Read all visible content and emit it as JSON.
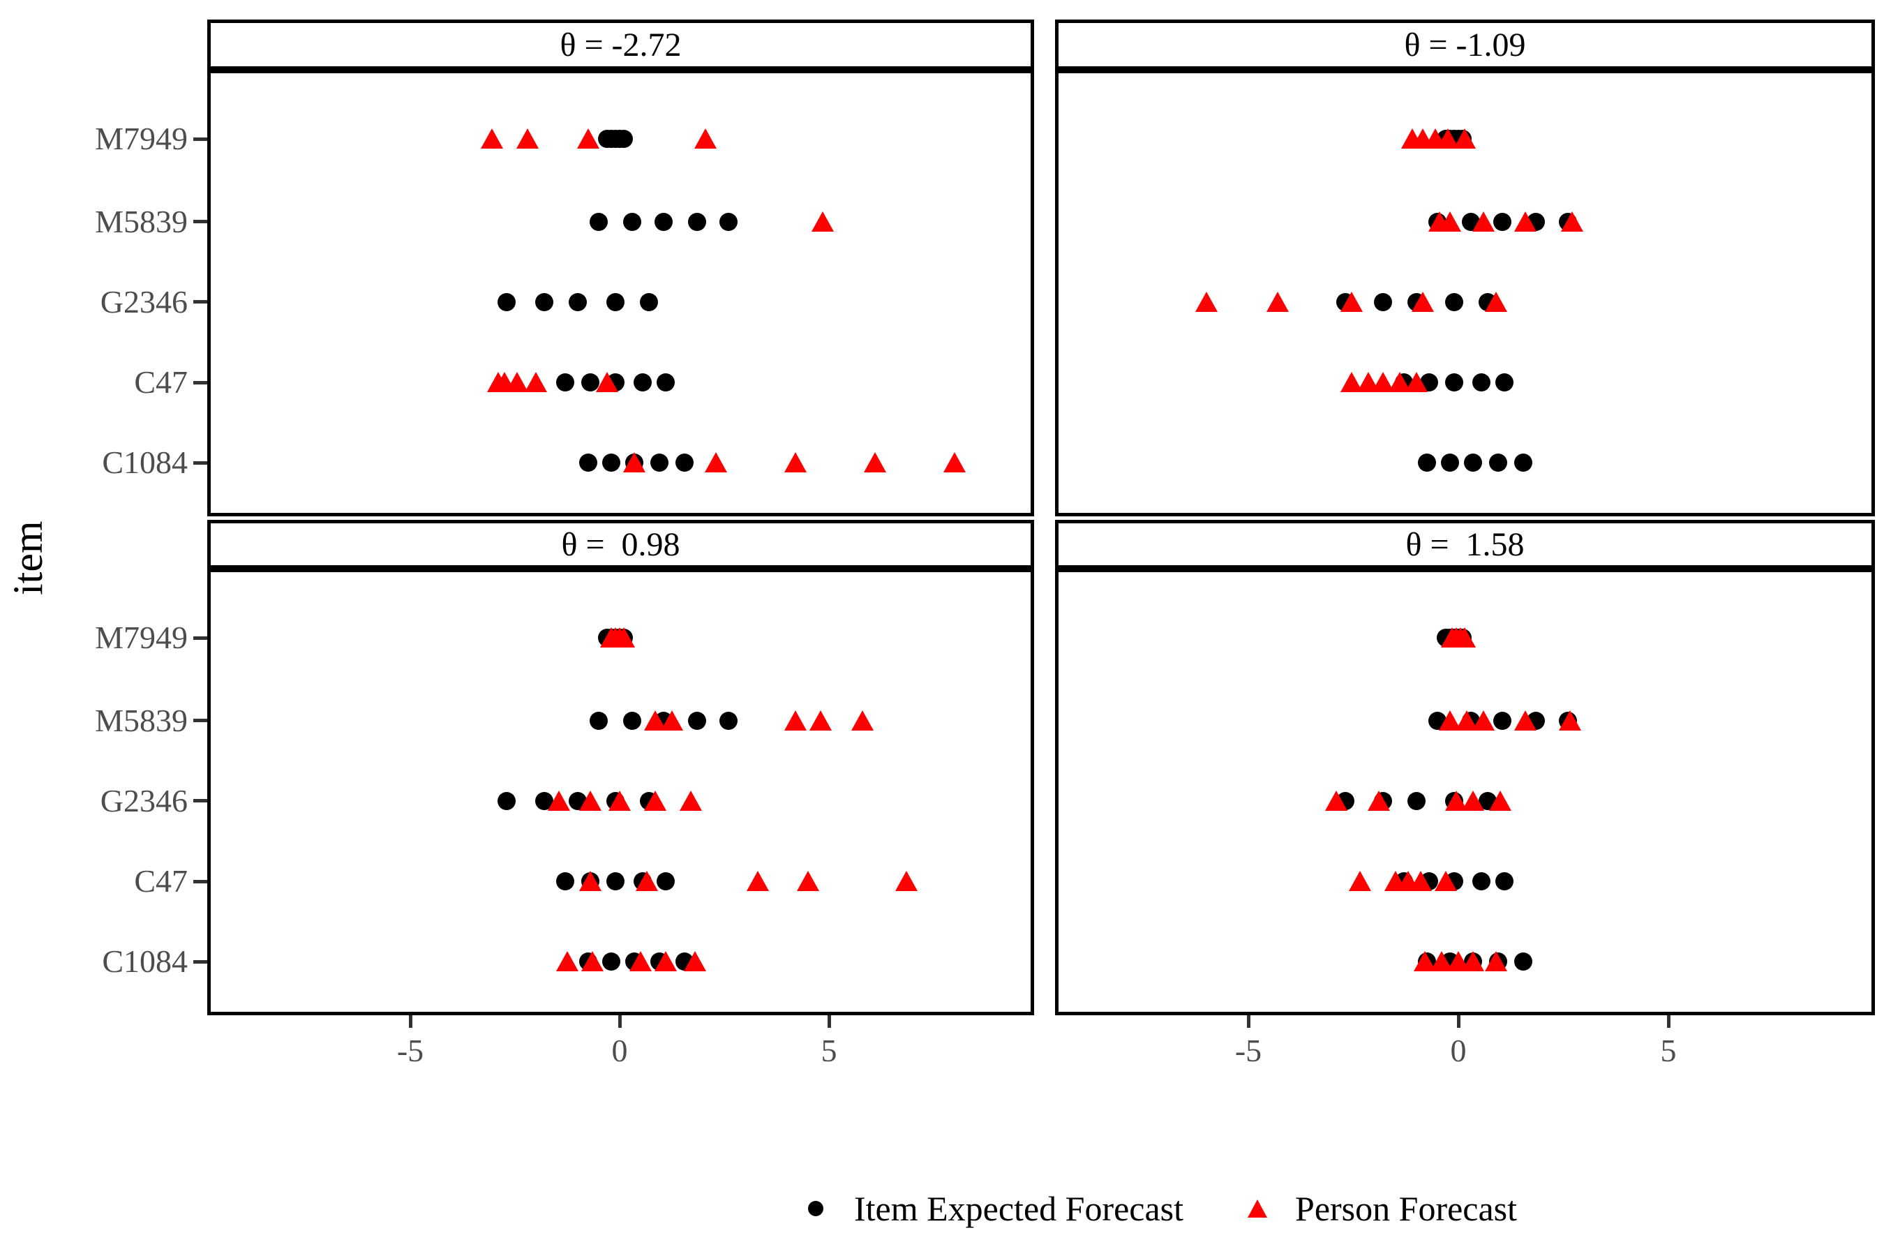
{
  "figure": {
    "y_axis_title": "item",
    "items": [
      "M7949",
      "M5839",
      "G2346",
      "C47",
      "C1084"
    ],
    "x_tick_labels": [
      "-5",
      "0",
      "5"
    ],
    "colors": {
      "background": "#FFFFFF",
      "item_expected_point": "#000000",
      "person_forecast_point": "#FF0000",
      "axis_text": "#4D4D4D",
      "panel_border": "#000000"
    },
    "legend": [
      {
        "marker": "circle",
        "label": "Item Expected Forecast"
      },
      {
        "marker": "triangle",
        "label": "Person Forecast"
      }
    ]
  },
  "chart_data": [
    {
      "type": "scatter",
      "facet_label": "θ = -2.72",
      "theta": -2.72,
      "x_ticks": [
        -5,
        0,
        5
      ],
      "x_range": [
        -9.8,
        9.9
      ],
      "circle_series": "Item Expected Forecast",
      "triangle_series": "Person Forecast",
      "rows": [
        {
          "item": "M7949",
          "circles": [
            -0.3,
            -0.2,
            -0.1,
            0.0,
            0.1
          ],
          "triangles": [
            -3.05,
            -2.2,
            -0.75,
            2.05
          ]
        },
        {
          "item": "M5839",
          "circles": [
            -0.5,
            0.3,
            1.05,
            1.85,
            2.6
          ],
          "triangles": [
            4.85
          ]
        },
        {
          "item": "G2346",
          "circles": [
            -2.7,
            -1.8,
            -1.0,
            -0.1,
            0.7
          ],
          "triangles": []
        },
        {
          "item": "C47",
          "circles": [
            -1.3,
            -0.7,
            -0.1,
            0.55,
            1.1
          ],
          "triangles": [
            -2.9,
            -2.75,
            -2.45,
            -2.0,
            -0.3
          ]
        },
        {
          "item": "C1084",
          "circles": [
            -0.75,
            -0.2,
            0.35,
            0.95,
            1.55
          ],
          "triangles": [
            0.35,
            2.3,
            4.2,
            6.1,
            8.0
          ]
        }
      ]
    },
    {
      "type": "scatter",
      "facet_label": "θ = -1.09",
      "theta": -1.09,
      "x_ticks": [
        -5,
        0,
        5
      ],
      "x_range": [
        -9.8,
        9.9
      ],
      "circle_series": "Item Expected Forecast",
      "triangle_series": "Person Forecast",
      "rows": [
        {
          "item": "M7949",
          "circles": [
            -0.3,
            -0.2,
            -0.1,
            0.0,
            0.1
          ],
          "triangles": [
            -1.1,
            -0.85,
            -0.55,
            -0.25,
            0.15
          ]
        },
        {
          "item": "M5839",
          "circles": [
            -0.5,
            0.3,
            1.05,
            1.85,
            2.6
          ],
          "triangles": [
            -0.45,
            -0.2,
            0.6,
            1.6,
            2.7
          ]
        },
        {
          "item": "G2346",
          "circles": [
            -2.7,
            -1.8,
            -1.0,
            -0.1,
            0.7
          ],
          "triangles": [
            -6.0,
            -4.3,
            -2.55,
            -0.85,
            0.9
          ]
        },
        {
          "item": "C47",
          "circles": [
            -1.3,
            -0.7,
            -0.1,
            0.55,
            1.1
          ],
          "triangles": [
            -2.55,
            -2.15,
            -1.8,
            -1.4,
            -1.0
          ]
        },
        {
          "item": "C1084",
          "circles": [
            -0.75,
            -0.2,
            0.35,
            0.95,
            1.55
          ],
          "triangles": []
        }
      ]
    },
    {
      "type": "scatter",
      "facet_label": "θ =  0.98",
      "theta": 0.98,
      "x_ticks": [
        -5,
        0,
        5
      ],
      "x_range": [
        -9.8,
        9.9
      ],
      "circle_series": "Item Expected Forecast",
      "triangle_series": "Person Forecast",
      "rows": [
        {
          "item": "M7949",
          "circles": [
            -0.3,
            -0.2,
            -0.1,
            0.0,
            0.1
          ],
          "triangles": [
            -0.2,
            -0.1,
            0.0,
            0.1
          ]
        },
        {
          "item": "M5839",
          "circles": [
            -0.5,
            0.3,
            1.05,
            1.85,
            2.6
          ],
          "triangles": [
            0.85,
            1.25,
            4.2,
            4.8,
            5.8
          ]
        },
        {
          "item": "G2346",
          "circles": [
            -2.7,
            -1.8,
            -1.0,
            -0.1,
            0.7
          ],
          "triangles": [
            -1.45,
            -0.7,
            0.0,
            0.85,
            1.7
          ]
        },
        {
          "item": "C47",
          "circles": [
            -1.3,
            -0.7,
            -0.1,
            0.55,
            1.1
          ],
          "triangles": [
            -0.7,
            0.65,
            3.3,
            4.5,
            6.85
          ]
        },
        {
          "item": "C1084",
          "circles": [
            -0.75,
            -0.2,
            0.35,
            0.95,
            1.55
          ],
          "triangles": [
            -1.25,
            -0.65,
            0.5,
            1.1,
            1.8
          ]
        }
      ]
    },
    {
      "type": "scatter",
      "facet_label": "θ =  1.58",
      "theta": 1.58,
      "x_ticks": [
        -5,
        0,
        5
      ],
      "x_range": [
        -9.8,
        9.9
      ],
      "circle_series": "Item Expected Forecast",
      "triangle_series": "Person Forecast",
      "rows": [
        {
          "item": "M7949",
          "circles": [
            -0.3,
            -0.2,
            -0.1,
            0.0,
            0.1
          ],
          "triangles": [
            -0.15,
            -0.05,
            0.05,
            0.15
          ]
        },
        {
          "item": "M5839",
          "circles": [
            -0.5,
            0.3,
            1.05,
            1.85,
            2.6
          ],
          "triangles": [
            -0.2,
            0.2,
            0.6,
            1.6,
            2.65
          ]
        },
        {
          "item": "G2346",
          "circles": [
            -2.7,
            -1.8,
            -1.0,
            -0.1,
            0.7
          ],
          "triangles": [
            -2.9,
            -1.9,
            -0.05,
            0.35,
            1.0
          ]
        },
        {
          "item": "C47",
          "circles": [
            -1.3,
            -0.7,
            -0.1,
            0.55,
            1.1
          ],
          "triangles": [
            -2.35,
            -1.5,
            -1.2,
            -0.9,
            -0.3
          ]
        },
        {
          "item": "C1084",
          "circles": [
            -0.75,
            -0.2,
            0.35,
            0.95,
            1.55
          ],
          "triangles": [
            -0.8,
            -0.4,
            0.0,
            0.35,
            0.9
          ]
        }
      ]
    }
  ]
}
